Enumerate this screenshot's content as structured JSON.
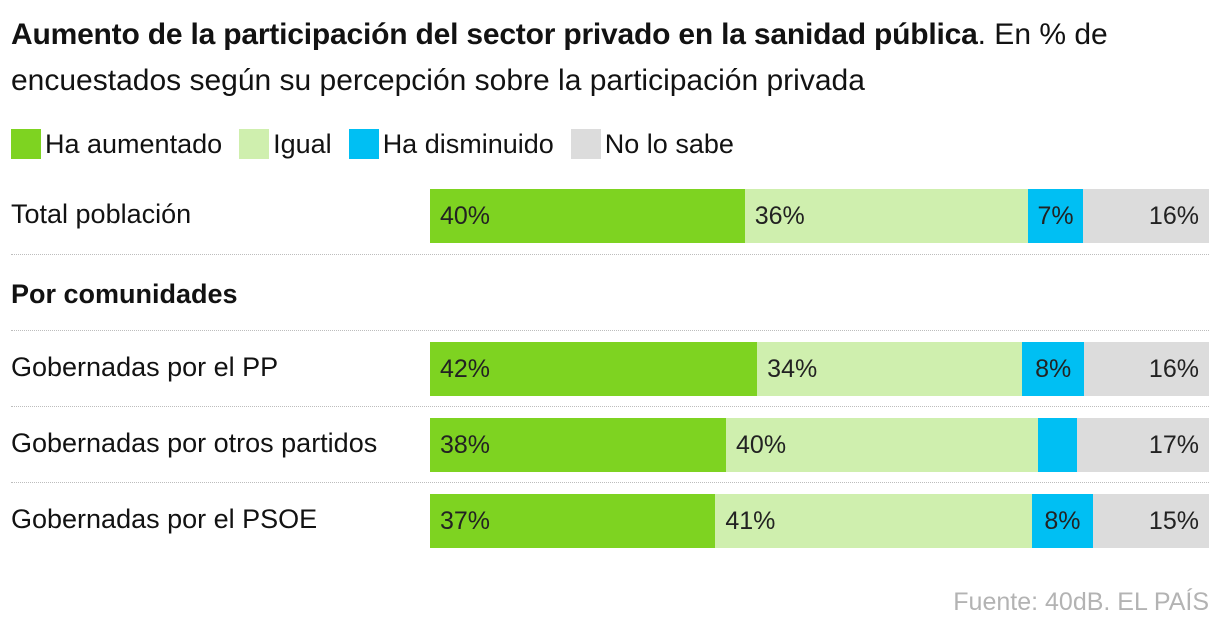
{
  "title_bold": "Aumento de la participación del sector privado en la sanidad pública",
  "title_rest": ". En % de encuestados según su percepción sobre la participación privada",
  "source": "Fuente: 40dB. EL PAÍS",
  "section_label": "Por comunidades",
  "colors": {
    "ha_aumentado": "#7ed321",
    "igual": "#cfefae",
    "ha_disminuido": "#00bff3",
    "no_lo_sabe": "#dcdcdc"
  },
  "chart_data": {
    "type": "bar",
    "orientation": "horizontal",
    "stacked": true,
    "categories": [
      "Total población",
      "Gobernadas por el PP",
      "Gobernadas por otros partidos",
      "Gobernadas por el PSOE"
    ],
    "series": [
      {
        "name": "Ha aumentado",
        "key": "ha_aumentado",
        "values": [
          40,
          42,
          38,
          37
        ],
        "labels": [
          "40%",
          "42%",
          "38%",
          "37%"
        ]
      },
      {
        "name": "Igual",
        "key": "igual",
        "values": [
          36,
          34,
          40,
          41
        ],
        "labels": [
          "36%",
          "34%",
          "40%",
          "41%"
        ]
      },
      {
        "name": "Ha disminuido",
        "key": "ha_disminuido",
        "values": [
          7,
          8,
          5,
          8
        ],
        "labels": [
          "7%",
          "8%",
          "",
          "8%"
        ]
      },
      {
        "name": "No lo sabe",
        "key": "no_lo_sabe",
        "values": [
          16,
          16,
          17,
          15
        ],
        "labels": [
          "16%",
          "16%",
          "17%",
          "15%"
        ]
      }
    ],
    "xlim": [
      0,
      100
    ],
    "unit": "%"
  }
}
